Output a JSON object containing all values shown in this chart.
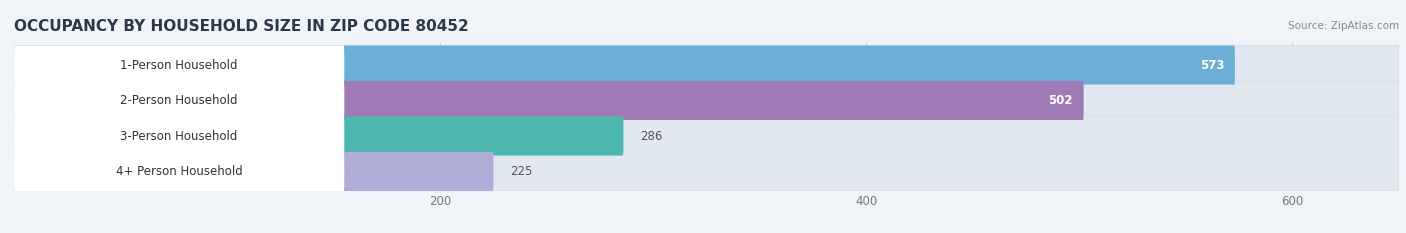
{
  "title": "OCCUPANCY BY HOUSEHOLD SIZE IN ZIP CODE 80452",
  "source": "Source: ZipAtlas.com",
  "categories": [
    "1-Person Household",
    "2-Person Household",
    "3-Person Household",
    "4+ Person Household"
  ],
  "values": [
    573,
    502,
    286,
    225
  ],
  "bar_colors": [
    "#6baed6",
    "#9e7bb5",
    "#4db8b0",
    "#b0acd8"
  ],
  "label_colors": [
    "white",
    "white",
    "#555555",
    "#555555"
  ],
  "bg_color": "#f0f3f7",
  "bar_bg_color": "#e2e8ef",
  "xlim": [
    0,
    650
  ],
  "xticks": [
    200,
    400,
    600
  ],
  "title_fontsize": 11,
  "label_fontsize": 8.5,
  "value_fontsize": 8.5,
  "tick_fontsize": 8.5
}
